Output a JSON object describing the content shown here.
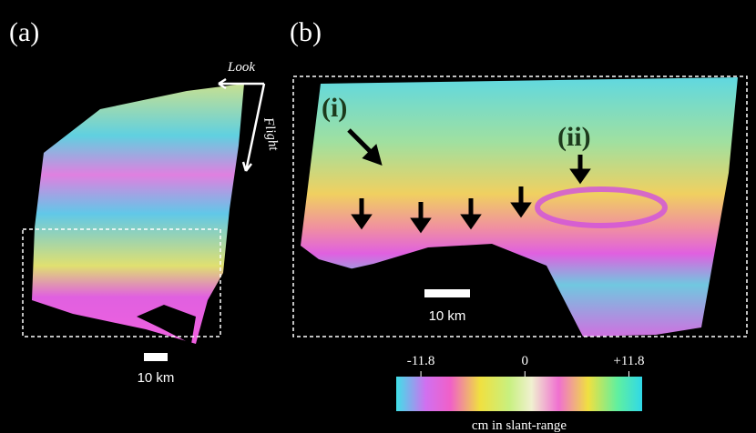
{
  "panels": [
    {
      "label": "(a)",
      "look": "Look",
      "flight": "Flight",
      "scale": "10 km"
    },
    {
      "label": "(b)",
      "markers": [
        "(i)",
        "(ii)"
      ],
      "scale": "10 km"
    }
  ],
  "colorbar": {
    "lim": [
      -14.6,
      13.3
    ],
    "ticks": [
      -11.8,
      0,
      {
        "value": 11.8,
        "label": "+11.8"
      }
    ],
    "label": "cm in slant-range"
  }
}
